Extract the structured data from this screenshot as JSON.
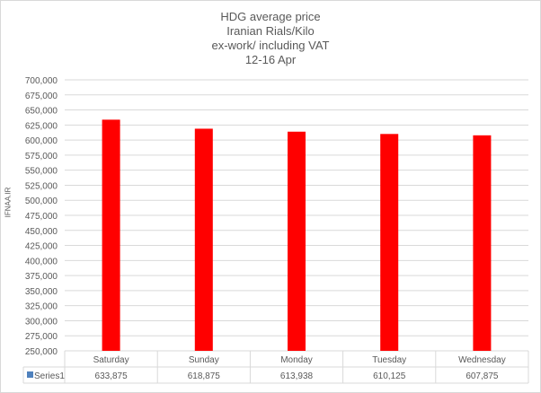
{
  "chart_data": {
    "type": "bar",
    "title": [
      "HDG average  price",
      "Iranian Rials/Kilo",
      "ex-work/ including VAT",
      "12-16 Apr"
    ],
    "categories": [
      "Saturday",
      "Sunday",
      "Monday",
      "Tuesday",
      "Wednesday"
    ],
    "series": [
      {
        "name": "Series1",
        "values": [
          633875,
          618875,
          613938,
          610125,
          607875
        ],
        "labels": [
          "633,875",
          "618,875",
          "613,938",
          "610,125",
          "607,875"
        ],
        "color": "#FF0000"
      }
    ],
    "ylabel": "IFNAA.IR",
    "ylim": [
      250000,
      700000
    ],
    "ytick_step": 25000,
    "grid": true,
    "data_table": true,
    "legend_key_color": "#4F81BD"
  }
}
